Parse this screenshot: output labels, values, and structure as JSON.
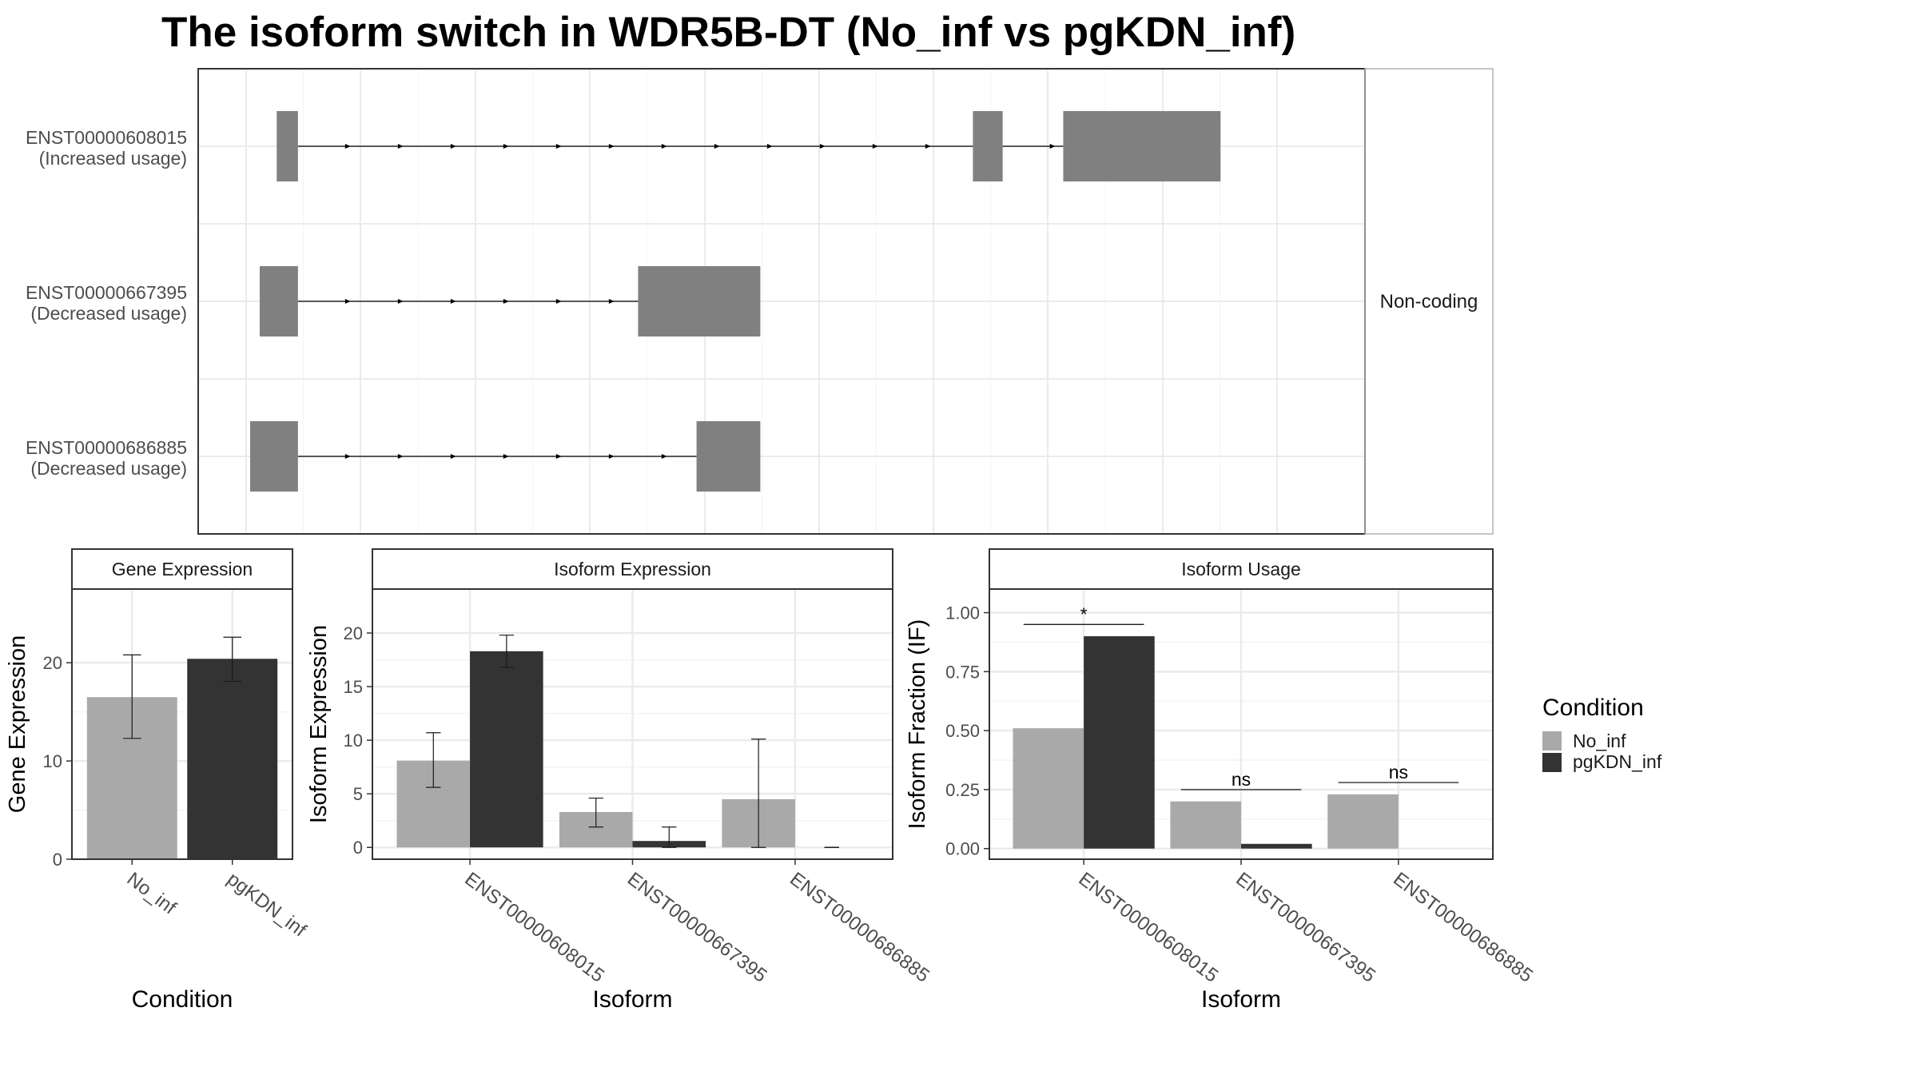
{
  "title": "The isoform switch in WDR5B-DT (No_inf vs pgKDN_inf)",
  "colors": {
    "No_inf": "#a9a9a9",
    "pgKDN_inf": "#333333",
    "exon": "#808080",
    "grid": "#ebebeb",
    "strip_bg": "#ffffff",
    "frame": "#333333"
  },
  "chart_data": [
    {
      "type": "gene_structure",
      "panel_label": "Non-coding",
      "xlim": [
        0,
        100
      ],
      "tracks": [
        {
          "id": "ENST00000608015",
          "usage": "(Increased usage)",
          "exons": [
            [
              2.5,
              4.5
            ],
            [
              68,
              70.8
            ],
            [
              76.5,
              91.3
            ]
          ]
        },
        {
          "id": "ENST00000667395",
          "usage": "(Decreased usage)",
          "exons": [
            [
              0.9,
              4.5
            ],
            [
              36.5,
              48
            ]
          ]
        },
        {
          "id": "ENST00000686885",
          "usage": "(Decreased usage)",
          "exons": [
            [
              0,
              4.5
            ],
            [
              42,
              48
            ]
          ]
        }
      ]
    },
    {
      "type": "bar",
      "strip": "Gene Expression",
      "xlabel": "Condition",
      "ylabel": "Gene Expression",
      "categories": [
        "No_inf",
        "pgKDN_inf"
      ],
      "values": [
        16.5,
        20.4
      ],
      "errors": [
        [
          12.3,
          20.8
        ],
        [
          18.1,
          22.6
        ]
      ],
      "ylim": [
        0,
        27.5
      ],
      "yticks": [
        0,
        10,
        20
      ]
    },
    {
      "type": "bar",
      "strip": "Isoform Expression",
      "xlabel": "Isoform",
      "ylabel": "Isoform Expression",
      "categories": [
        "ENST00000608015",
        "ENST00000667395",
        "ENST00000686885"
      ],
      "series": [
        {
          "name": "No_inf",
          "values": [
            8.1,
            3.3,
            4.5
          ],
          "errors": [
            [
              5.6,
              10.7
            ],
            [
              1.9,
              4.6
            ],
            [
              0,
              10.1
            ]
          ]
        },
        {
          "name": "pgKDN_inf",
          "values": [
            18.3,
            0.6,
            0
          ],
          "errors": [
            [
              16.8,
              19.8
            ],
            [
              0,
              1.9
            ],
            [
              0,
              0
            ]
          ]
        }
      ],
      "ylim": [
        -1.1,
        24.1
      ],
      "yticks": [
        0,
        5,
        10,
        15,
        20
      ]
    },
    {
      "type": "bar",
      "strip": "Isoform Usage",
      "xlabel": "Isoform",
      "ylabel": "Isoform Fraction (IF)",
      "categories": [
        "ENST00000608015",
        "ENST00000667395",
        "ENST00000686885"
      ],
      "series": [
        {
          "name": "No_inf",
          "values": [
            0.51,
            0.2,
            0.23
          ]
        },
        {
          "name": "pgKDN_inf",
          "values": [
            0.9,
            0.02,
            0
          ]
        }
      ],
      "significance": [
        "*",
        "ns",
        "ns"
      ],
      "sig_y": [
        0.95,
        0.25,
        0.28
      ],
      "ylim": [
        -0.045,
        1.1
      ],
      "yticks": [
        "0.00",
        "0.25",
        "0.50",
        "0.75",
        "1.00"
      ]
    }
  ],
  "legend": {
    "title": "Condition",
    "entries": [
      "No_inf",
      "pgKDN_inf"
    ]
  }
}
